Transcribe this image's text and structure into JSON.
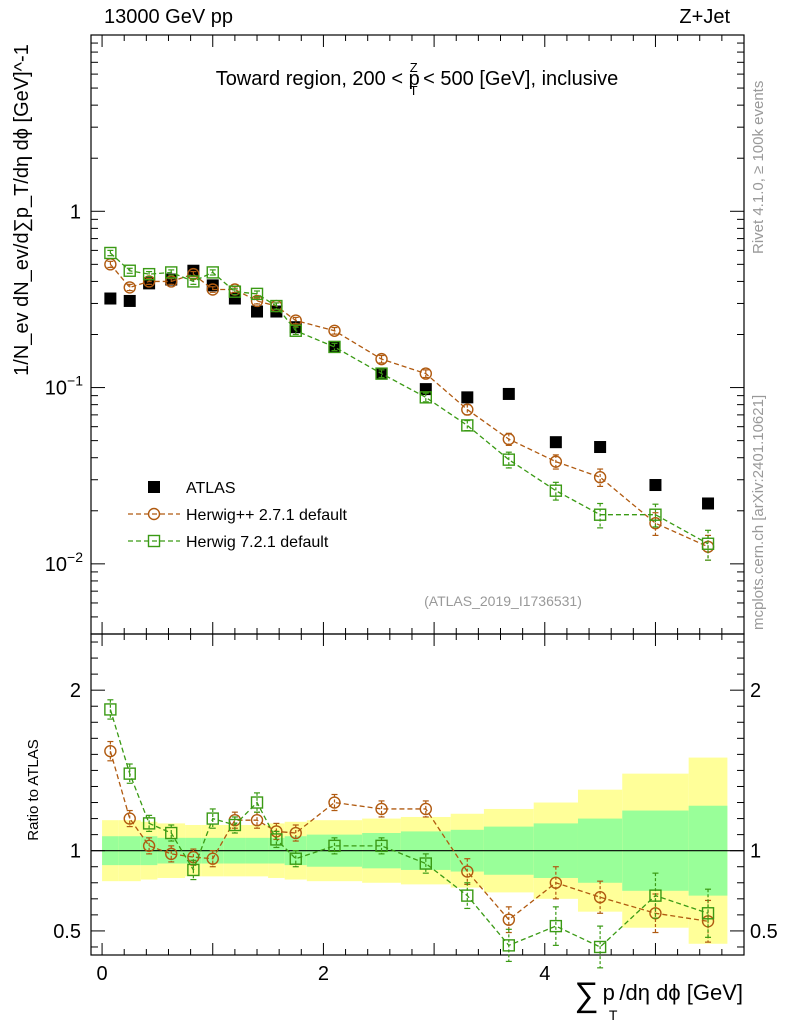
{
  "header": {
    "left": "13000 GeV pp",
    "right": "Z+Jet"
  },
  "side_labels": {
    "rivet": "Rivet 4.1.0, ≥ 100k events",
    "mcplots": "mcplots.cern.ch [arXiv:2401.10621]"
  },
  "chart_data": [
    {
      "type": "scatter",
      "panel": "main",
      "title": "Toward region, 200 < p_T^Z < 500 [GeV], inclusive",
      "title_parts": {
        "pre": "Toward region, 200 < p",
        "sub": "T",
        "sup": "Z",
        "post": " < 500 [GeV], inclusive"
      },
      "ylabel": "1/N_ev dN_ev/d∑p_T/dη dϕ [GeV]^-1",
      "yscale": "log",
      "xlim": [
        -0.1,
        5.8
      ],
      "ylim": [
        0.004,
        10
      ],
      "y_ticks": [
        {
          "v": 0.01,
          "base": "10",
          "exp": "−2"
        },
        {
          "v": 0.1,
          "base": "10",
          "exp": "−1"
        },
        {
          "v": 1,
          "label": "1"
        }
      ],
      "watermark": "(ATLAS_2019_I1736531)",
      "series": [
        {
          "name": "ATLAS",
          "color": "#000000",
          "marker": "filled-square",
          "x": [
            0.075,
            0.25,
            0.425,
            0.625,
            0.825,
            1.0,
            1.2,
            1.4,
            1.575,
            1.75,
            2.1,
            2.525,
            2.925,
            3.3,
            3.675,
            4.1,
            4.5,
            5.0,
            5.475
          ],
          "y": [
            0.32,
            0.31,
            0.39,
            0.41,
            0.46,
            0.38,
            0.32,
            0.27,
            0.27,
            0.22,
            0.17,
            0.12,
            0.098,
            0.088,
            0.092,
            0.049,
            0.046,
            0.028,
            0.022
          ]
        },
        {
          "name": "Herwig++ 2.7.1 default",
          "color": "#b05a10",
          "marker": "open-circle",
          "x": [
            0.075,
            0.25,
            0.425,
            0.625,
            0.825,
            1.0,
            1.2,
            1.4,
            1.575,
            1.75,
            2.1,
            2.525,
            2.925,
            3.3,
            3.675,
            4.1,
            4.5,
            5.0,
            5.475
          ],
          "y": [
            0.5,
            0.37,
            0.4,
            0.4,
            0.44,
            0.36,
            0.36,
            0.31,
            0.29,
            0.24,
            0.21,
            0.145,
            0.12,
            0.075,
            0.051,
            0.038,
            0.031,
            0.017,
            0.0125
          ],
          "err": [
            0.02,
            0.015,
            0.015,
            0.015,
            0.015,
            0.013,
            0.013,
            0.012,
            0.012,
            0.01,
            0.009,
            0.007,
            0.006,
            0.005,
            0.004,
            0.0035,
            0.0035,
            0.0025,
            0.002
          ]
        },
        {
          "name": "Herwig 7.2.1 default",
          "color": "#3a9a14",
          "marker": "open-square",
          "x": [
            0.075,
            0.25,
            0.425,
            0.625,
            0.825,
            1.0,
            1.2,
            1.4,
            1.575,
            1.75,
            2.1,
            2.525,
            2.925,
            3.3,
            3.675,
            4.1,
            4.5,
            5.0,
            5.475
          ],
          "y": [
            0.58,
            0.46,
            0.44,
            0.45,
            0.4,
            0.45,
            0.35,
            0.34,
            0.29,
            0.21,
            0.17,
            0.12,
            0.088,
            0.061,
            0.039,
            0.026,
            0.019,
            0.019,
            0.013
          ],
          "err": [
            0.02,
            0.015,
            0.015,
            0.015,
            0.015,
            0.015,
            0.013,
            0.013,
            0.012,
            0.01,
            0.008,
            0.006,
            0.005,
            0.004,
            0.004,
            0.003,
            0.003,
            0.0028,
            0.0025
          ]
        }
      ]
    },
    {
      "type": "scatter",
      "panel": "ratio",
      "ylabel": "Ratio to ATLAS",
      "xlabel": "∑p_T/dη dϕ [GeV]",
      "xlabel_parts": {
        "sigma": "∑",
        "p": "p",
        "sub": "T",
        "rest": "/dη dϕ [GeV]"
      },
      "xlim": [
        -0.1,
        5.8
      ],
      "ylim": [
        0.35,
        2.35
      ],
      "x_ticks": [
        0,
        2,
        4
      ],
      "y_ticks": [
        0.5,
        1,
        2
      ],
      "bands": {
        "bin_edges": [
          0.0,
          0.15,
          0.35,
          0.5,
          0.75,
          0.9,
          1.1,
          1.3,
          1.5,
          1.65,
          1.85,
          2.35,
          2.7,
          3.15,
          3.45,
          3.9,
          4.3,
          4.7,
          5.3,
          5.65
        ],
        "inner_half_width": [
          0.09,
          0.09,
          0.09,
          0.08,
          0.08,
          0.08,
          0.08,
          0.08,
          0.08,
          0.09,
          0.1,
          0.11,
          0.12,
          0.13,
          0.15,
          0.17,
          0.2,
          0.25,
          0.28
        ],
        "outer_half_width": [
          0.19,
          0.19,
          0.18,
          0.17,
          0.16,
          0.16,
          0.16,
          0.16,
          0.17,
          0.18,
          0.19,
          0.2,
          0.21,
          0.23,
          0.26,
          0.3,
          0.38,
          0.48,
          0.58
        ],
        "inner_color": "#99ff99",
        "outer_color": "#ffff99"
      },
      "series": [
        {
          "name": "Herwig++ 2.7.1 default",
          "color": "#b05a10",
          "marker": "open-circle",
          "x": [
            0.075,
            0.25,
            0.425,
            0.625,
            0.825,
            1.0,
            1.2,
            1.4,
            1.575,
            1.75,
            2.1,
            2.525,
            2.925,
            3.3,
            3.675,
            4.1,
            4.5,
            5.0,
            5.475
          ],
          "y": [
            1.62,
            1.2,
            1.03,
            0.98,
            0.96,
            0.95,
            1.19,
            1.19,
            1.12,
            1.11,
            1.3,
            1.26,
            1.26,
            0.87,
            0.57,
            0.8,
            0.71,
            0.61,
            0.56
          ],
          "err": [
            0.06,
            0.05,
            0.05,
            0.05,
            0.05,
            0.05,
            0.05,
            0.05,
            0.05,
            0.05,
            0.05,
            0.05,
            0.05,
            0.08,
            0.08,
            0.1,
            0.1,
            0.12,
            0.13
          ]
        },
        {
          "name": "Herwig 7.2.1 default",
          "color": "#3a9a14",
          "marker": "open-square",
          "x": [
            0.075,
            0.25,
            0.425,
            0.625,
            0.825,
            1.0,
            1.2,
            1.4,
            1.575,
            1.75,
            2.1,
            2.525,
            2.925,
            3.3,
            3.675,
            4.1,
            4.5,
            5.0,
            5.475
          ],
          "y": [
            1.88,
            1.48,
            1.17,
            1.11,
            0.88,
            1.2,
            1.16,
            1.3,
            1.07,
            0.95,
            1.03,
            1.03,
            0.92,
            0.72,
            0.41,
            0.53,
            0.4,
            0.72,
            0.61
          ],
          "err": [
            0.06,
            0.06,
            0.05,
            0.05,
            0.06,
            0.06,
            0.05,
            0.06,
            0.05,
            0.05,
            0.05,
            0.05,
            0.06,
            0.08,
            0.1,
            0.12,
            0.13,
            0.14,
            0.15
          ]
        }
      ]
    }
  ]
}
